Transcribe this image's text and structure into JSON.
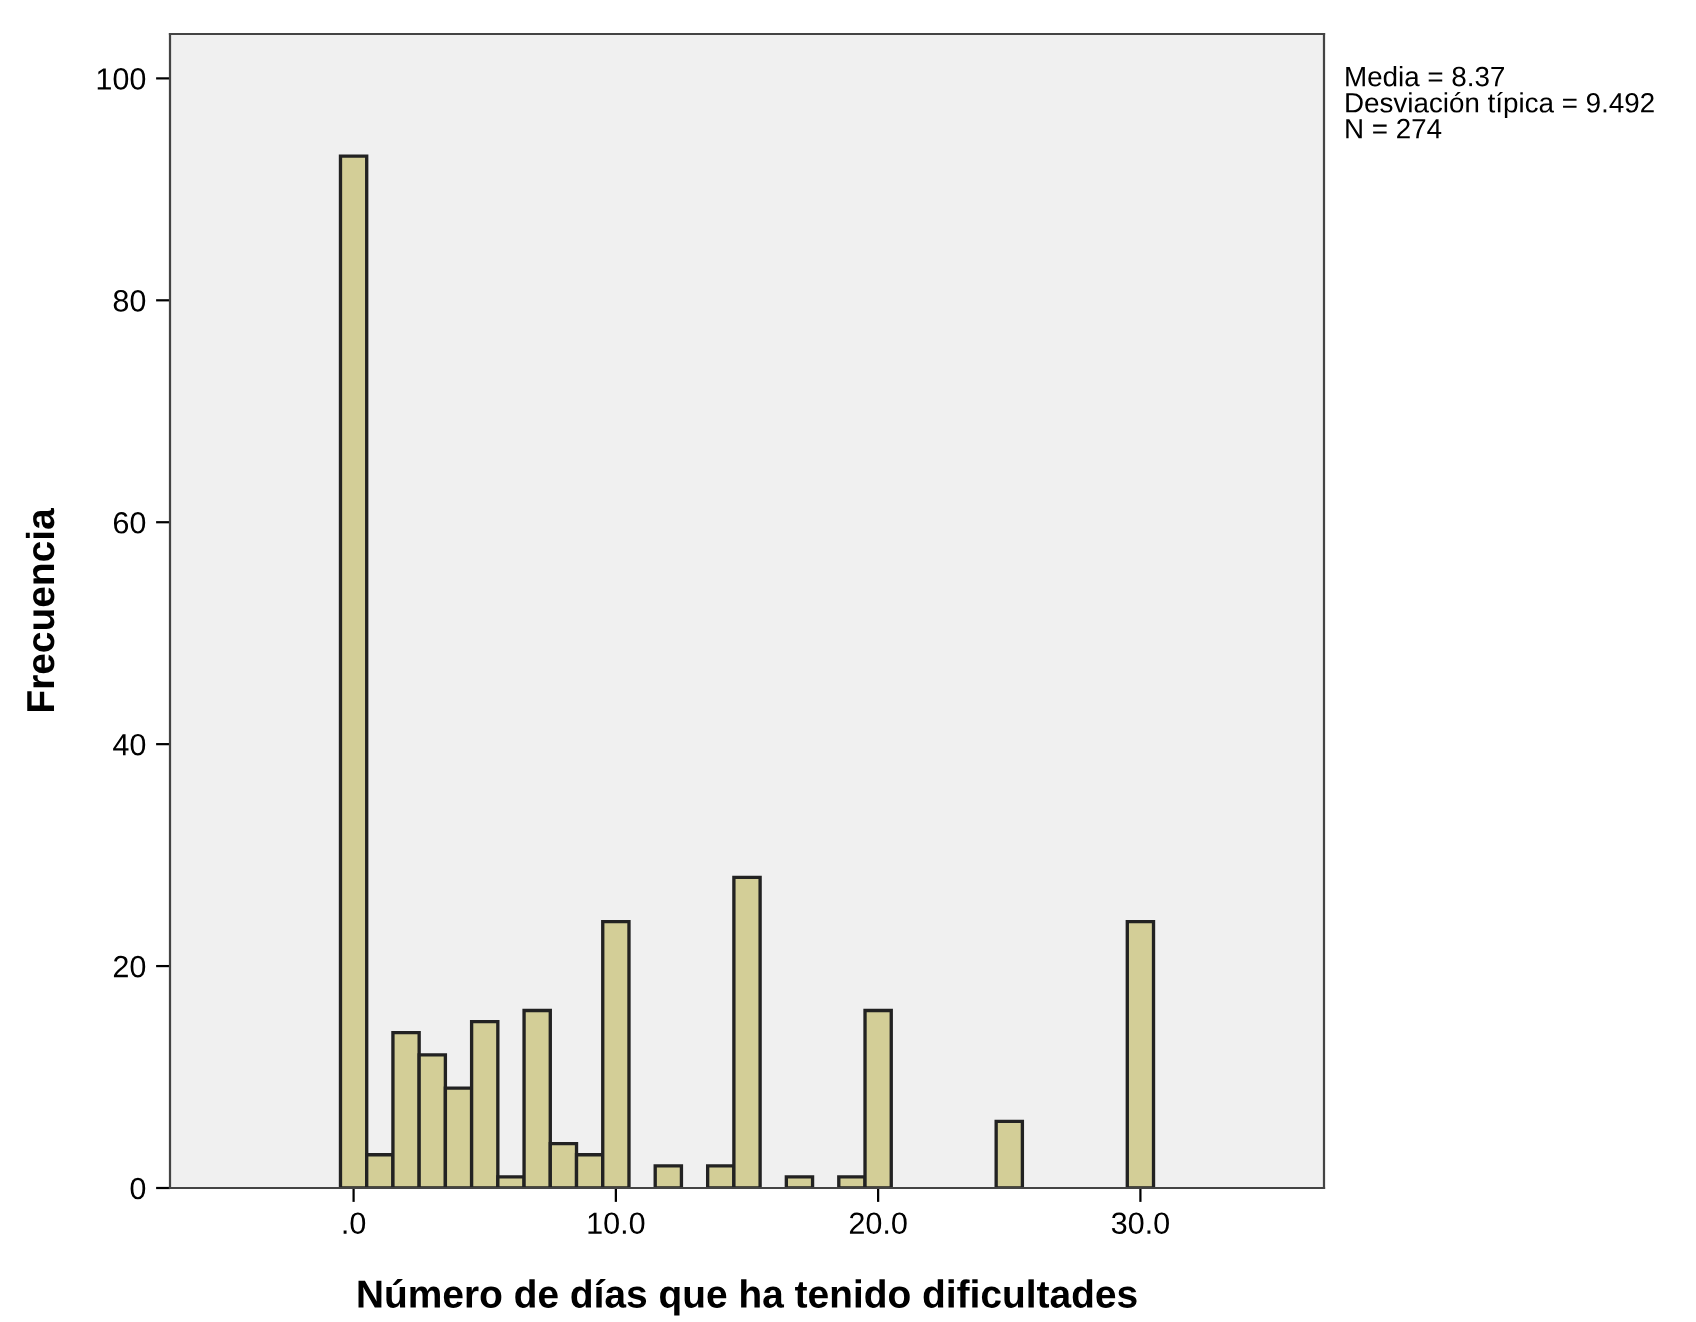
{
  "chart_data": {
    "type": "histogram",
    "xlabel": "Número de días que ha tenido dificultades",
    "ylabel": "Frecuencia",
    "bins": [
      -0.5,
      0.5,
      1.5,
      2.5,
      3.5,
      4.5,
      5.5,
      6.5,
      7.5,
      8.5,
      9.5,
      10.5,
      11.5,
      12.5,
      13.5,
      14.5,
      15.5,
      16.5,
      17.5,
      18.5,
      19.5,
      20.5,
      21.5,
      22.5,
      23.5,
      24.5,
      25.5,
      26.5,
      27.5,
      28.5,
      29.5,
      30.5
    ],
    "values": [
      93,
      3,
      14,
      12,
      9,
      15,
      1,
      16,
      4,
      3,
      24,
      0,
      2,
      0,
      2,
      28,
      0,
      1,
      0,
      1,
      16,
      0,
      0,
      0,
      0,
      6,
      0,
      0,
      0,
      0,
      24
    ],
    "color": "#d3ce97",
    "xlim": [
      -7,
      37
    ],
    "xticks": [
      {
        "value": 0,
        "label": ".0"
      },
      {
        "value": 10,
        "label": "10.0"
      },
      {
        "value": 20,
        "label": "20.0"
      },
      {
        "value": 30,
        "label": "30.0"
      }
    ],
    "ylim": [
      0,
      104
    ],
    "yticks": [
      0,
      20,
      40,
      60,
      80,
      100
    ],
    "annotations": [
      "Media = 8.37\nDesviación típica = 9.492\nN = 274"
    ],
    "grid": false,
    "legend": false
  }
}
